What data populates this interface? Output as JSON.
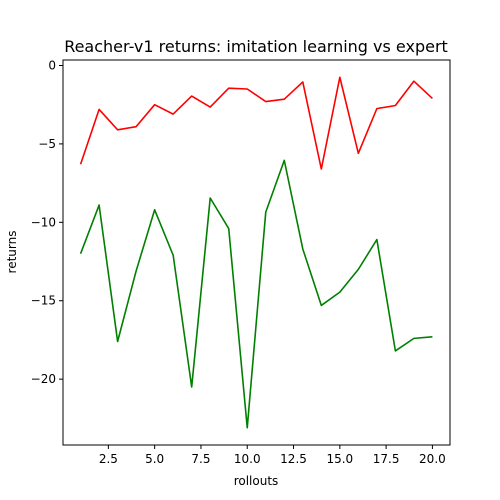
{
  "chart_data": {
    "type": "line",
    "title": "Reacher-v1 returns: imitation learning vs expert",
    "xlabel": "rollouts",
    "ylabel": "returns",
    "xlim": [
      0.05,
      20.95
    ],
    "ylim": [
      -24.2,
      0.35
    ],
    "xticks": [
      2.5,
      5.0,
      7.5,
      10.0,
      12.5,
      15.0,
      17.5,
      20.0
    ],
    "xtick_labels": [
      "2.5",
      "5.0",
      "7.5",
      "10.0",
      "12.5",
      "15.0",
      "17.5",
      "20.0"
    ],
    "yticks": [
      0,
      -5,
      -10,
      -15,
      -20
    ],
    "ytick_labels": [
      "0",
      "−5",
      "−10",
      "−15",
      "−20"
    ],
    "grid": false,
    "legend": "none",
    "x": [
      1,
      2,
      3,
      4,
      5,
      6,
      7,
      8,
      9,
      10,
      11,
      12,
      13,
      14,
      15,
      16,
      17,
      18,
      19,
      20
    ],
    "series": [
      {
        "color": "#ff0000",
        "values": [
          -6.3,
          -2.8,
          -4.1,
          -3.9,
          -2.5,
          -3.1,
          -1.95,
          -2.65,
          -1.45,
          -1.5,
          -2.3,
          -2.15,
          -1.05,
          -6.6,
          -0.75,
          -5.6,
          -2.75,
          -2.55,
          -1.0,
          -2.1
        ]
      },
      {
        "color": "#008000",
        "values": [
          -12.0,
          -8.9,
          -17.6,
          -13.1,
          -9.2,
          -12.1,
          -20.5,
          -8.45,
          -10.4,
          -23.1,
          -9.35,
          -6.05,
          -11.7,
          -15.3,
          -14.45,
          -13.0,
          -11.1,
          -18.2,
          -17.4,
          -17.3
        ]
      }
    ]
  }
}
